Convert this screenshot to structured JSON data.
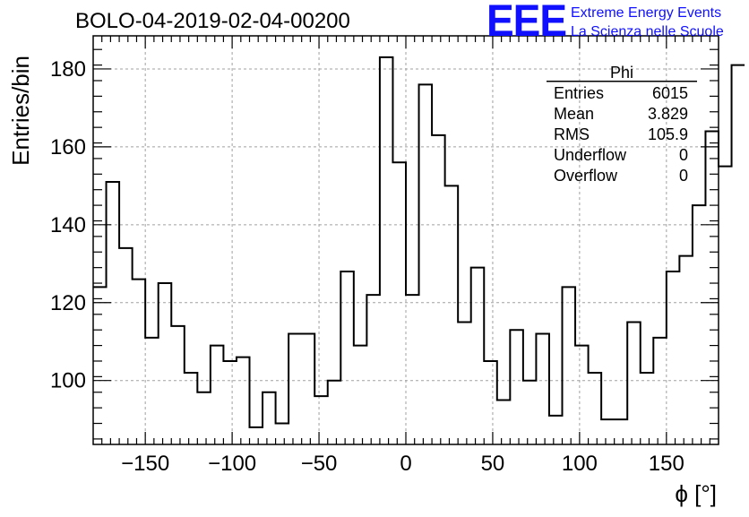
{
  "header": {
    "run_title": "BOLO-04-2019-02-04-00200",
    "logo_mark": "EEE",
    "logo_line1": "Extreme Energy Events",
    "logo_line2": "La Scienza nelle Scuole",
    "logo_color": "#1010ff"
  },
  "stats_box": {
    "name": "Phi",
    "rows": [
      {
        "label": "Entries",
        "value": "6015"
      },
      {
        "label": "Mean",
        "value": "3.829"
      },
      {
        "label": "RMS",
        "value": "105.9"
      },
      {
        "label": "Underflow",
        "value": "0"
      },
      {
        "label": "Overflow",
        "value": "0"
      }
    ]
  },
  "chart_data": {
    "type": "histogram",
    "title": "BOLO-04-2019-02-04-00200",
    "xlabel": "ϕ [°]",
    "ylabel": "Entries/bin",
    "xlim": [
      -180,
      180
    ],
    "ylim": [
      83.6,
      188.5
    ],
    "x_ticks": [
      -150,
      -100,
      -50,
      0,
      50,
      100,
      150
    ],
    "x_tick_labels": [
      "−150",
      "−100",
      "−50",
      "0",
      "50",
      "100",
      "150"
    ],
    "y_ticks": [
      100,
      120,
      140,
      160,
      180
    ],
    "y_tick_labels": [
      "100",
      "120",
      "140",
      "160",
      "180"
    ],
    "grid": true,
    "bin_width": 7.5,
    "x_start": -180,
    "values": [
      124,
      151,
      134,
      126,
      111,
      125,
      114,
      102,
      97,
      109,
      105,
      106,
      88,
      97,
      89,
      112,
      112,
      96,
      100,
      128,
      109,
      122,
      183,
      156,
      122,
      176,
      163,
      150,
      115,
      129,
      105,
      95,
      113,
      100,
      112,
      91,
      124,
      109,
      102,
      90,
      90,
      115,
      102,
      111,
      128,
      132,
      145,
      164,
      155,
      181
    ],
    "line_color": "#000000"
  }
}
